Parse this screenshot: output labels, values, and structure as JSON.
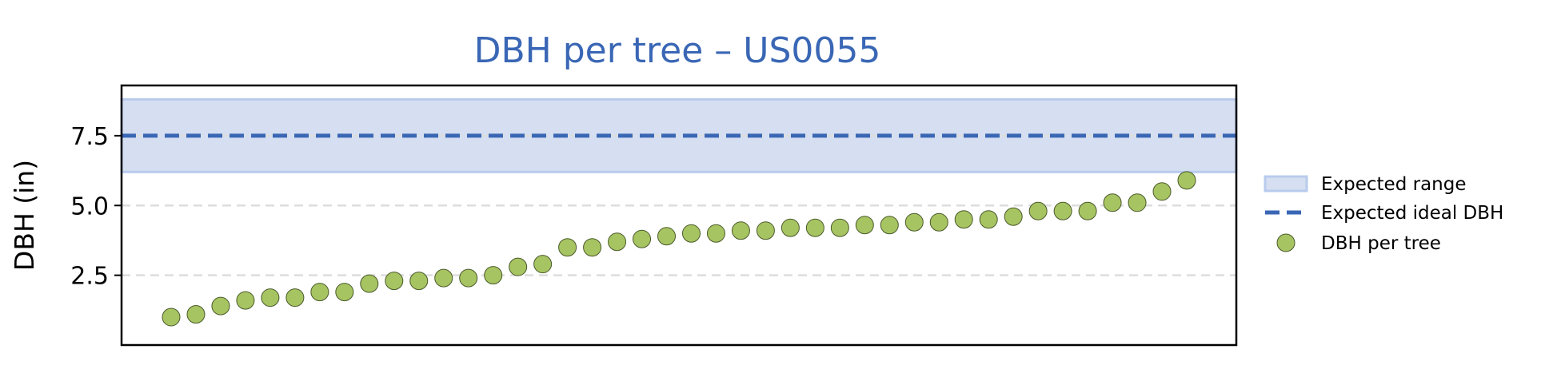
{
  "chart_data": {
    "type": "scatter",
    "title": "DBH per tree – US0055",
    "ylabel": "DBH (in)",
    "xlabel": "",
    "ylim": [
      0.0,
      9.3
    ],
    "y_ticks": [
      2.5,
      5.0,
      7.5
    ],
    "y_tick_labels": [
      "2.5",
      "5.0",
      "7.5"
    ],
    "grid": "horizontal dashed",
    "legend_position": "right outside",
    "expected_range": {
      "name": "Expected range",
      "low": 6.2,
      "high": 8.8
    },
    "expected_ideal": {
      "name": "Expected ideal DBH",
      "value": 7.5
    },
    "series": [
      {
        "name": "DBH per tree",
        "values": [
          1.0,
          1.1,
          1.4,
          1.6,
          1.7,
          1.7,
          1.9,
          1.9,
          2.2,
          2.3,
          2.3,
          2.4,
          2.4,
          2.5,
          2.8,
          2.9,
          3.5,
          3.5,
          3.7,
          3.8,
          3.9,
          4.0,
          4.0,
          4.1,
          4.1,
          4.2,
          4.2,
          4.2,
          4.3,
          4.3,
          4.4,
          4.4,
          4.5,
          4.5,
          4.6,
          4.8,
          4.8,
          4.8,
          5.1,
          5.1,
          5.5,
          5.9
        ]
      }
    ],
    "colors": {
      "title": "#3a67b5",
      "range_fill": "#d5dff1",
      "range_edge": "#b9cbed",
      "ideal_line": "#3a67b5",
      "point_fill": "#a7c462",
      "point_edge": "#4a5a2a",
      "grid": "#dddddd"
    }
  }
}
